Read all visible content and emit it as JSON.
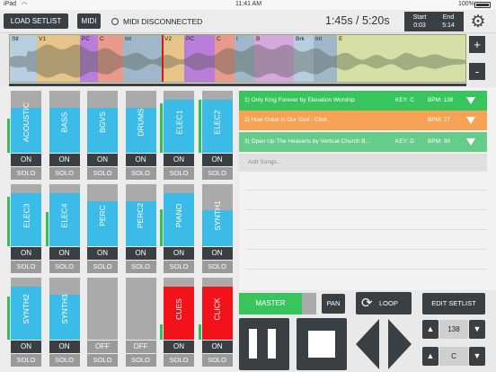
{
  "statusbar": {
    "device": "iPad",
    "wifi": "wifi-icon",
    "time": "11:41 AM",
    "battery": "100%"
  },
  "toolbar": {
    "load_setlist": "LOAD SETLIST",
    "midi": "MIDI",
    "midi_status": "MIDI DISCONNECTED",
    "time_display": "1:45s / 5:20s",
    "start_label": "Start",
    "start_value": "0:03",
    "end_label": "End",
    "end_value": "5:14"
  },
  "waveform": {
    "markers": [
      "Stl",
      "V1",
      "PC",
      "C",
      "Int",
      "V2",
      "PC",
      "C",
      "I",
      "B",
      "Brk",
      "Int",
      "E"
    ],
    "zoom_in": "+",
    "zoom_out": "-"
  },
  "mixer": {
    "channels": [
      {
        "name": "ACOUSTIC",
        "level": 0.72,
        "meter": 0.55,
        "on": "ON",
        "solo": "SOLO",
        "color": "#3bbbe8"
      },
      {
        "name": "BASS",
        "level": 0.72,
        "meter": 0.0,
        "on": "ON",
        "solo": "SOLO",
        "color": "#3bbbe8"
      },
      {
        "name": "BGVS",
        "level": 0.72,
        "meter": 0.0,
        "on": "ON",
        "solo": "SOLO",
        "color": "#3bbbe8"
      },
      {
        "name": "DRUMS",
        "level": 0.72,
        "meter": 0.0,
        "on": "ON",
        "solo": "SOLO",
        "color": "#3bbbe8"
      },
      {
        "name": "ELEC1",
        "level": 0.86,
        "meter": 0.8,
        "on": "ON",
        "solo": "SOLO",
        "color": "#3bbbe8"
      },
      {
        "name": "ELEC2",
        "level": 0.86,
        "meter": 0.85,
        "on": "ON",
        "solo": "SOLO",
        "color": "#3bbbe8"
      },
      {
        "name": "ELEC3",
        "level": 0.86,
        "meter": 0.8,
        "on": "ON",
        "solo": "SOLO",
        "color": "#3bbbe8"
      },
      {
        "name": "ELEC4",
        "level": 0.86,
        "meter": 0.55,
        "on": "ON",
        "solo": "SOLO",
        "color": "#3bbbe8"
      },
      {
        "name": "PERC",
        "level": 0.72,
        "meter": 0.0,
        "on": "ON",
        "solo": "SOLO",
        "color": "#3bbbe8"
      },
      {
        "name": "PERC2",
        "level": 0.72,
        "meter": 0.0,
        "on": "ON",
        "solo": "SOLO",
        "color": "#3bbbe8"
      },
      {
        "name": "PIANO",
        "level": 0.86,
        "meter": 0.6,
        "on": "ON",
        "solo": "SOLO",
        "color": "#3bbbe8"
      },
      {
        "name": "SYNTH1",
        "level": 0.58,
        "meter": 0.0,
        "on": "ON",
        "solo": "SOLO",
        "color": "#3bbbe8"
      },
      {
        "name": "SYNTH2",
        "level": 0.86,
        "meter": 0.7,
        "on": "ON",
        "solo": "SOLO",
        "color": "#3bbbe8"
      },
      {
        "name": "SYNTH3",
        "level": 0.72,
        "meter": 0.0,
        "on": "ON",
        "solo": "SOLO",
        "color": "#3bbbe8"
      },
      {
        "name": "",
        "level": 0.0,
        "meter": 0.0,
        "on": "OFF",
        "solo": "SOLO",
        "color": "#3bbbe8"
      },
      {
        "name": "",
        "level": 0.0,
        "meter": 0.0,
        "on": "OFF",
        "solo": "SOLO",
        "color": "#3bbbe8"
      },
      {
        "name": "CUES",
        "level": 0.86,
        "meter": 0.25,
        "on": "ON",
        "solo": "SOLO",
        "color": "#f2131a"
      },
      {
        "name": "CLICK",
        "level": 0.86,
        "meter": 0.25,
        "on": "ON",
        "solo": "SOLO",
        "color": "#f2131a"
      }
    ]
  },
  "setlist": {
    "songs": [
      {
        "title": "1) Only King Forever by Elevation Worship",
        "key": "KEY: C",
        "bpm": "BPM: 138",
        "color": "#39c55e"
      },
      {
        "title": "2) How Great Is Our God - Click",
        "key": "",
        "bpm": "BPM: 77",
        "color": "#f6a355"
      },
      {
        "title": "3) Open Up The Heavens  by Vertical Church B...",
        "key": "KEY: D",
        "bpm": "BPM: 99",
        "color": "#66cc8a"
      }
    ],
    "add_songs": "Add Songs..."
  },
  "controls": {
    "master": "MASTER",
    "pan": "PAN",
    "loop": "LOOP",
    "edit_setlist": "EDIT SETLIST",
    "bpm_value": "138",
    "key_value": "C"
  },
  "colors": {
    "dark": "#3a3f44",
    "accent_green": "#39c55e",
    "waveform_bg": "#d6dfa6"
  }
}
